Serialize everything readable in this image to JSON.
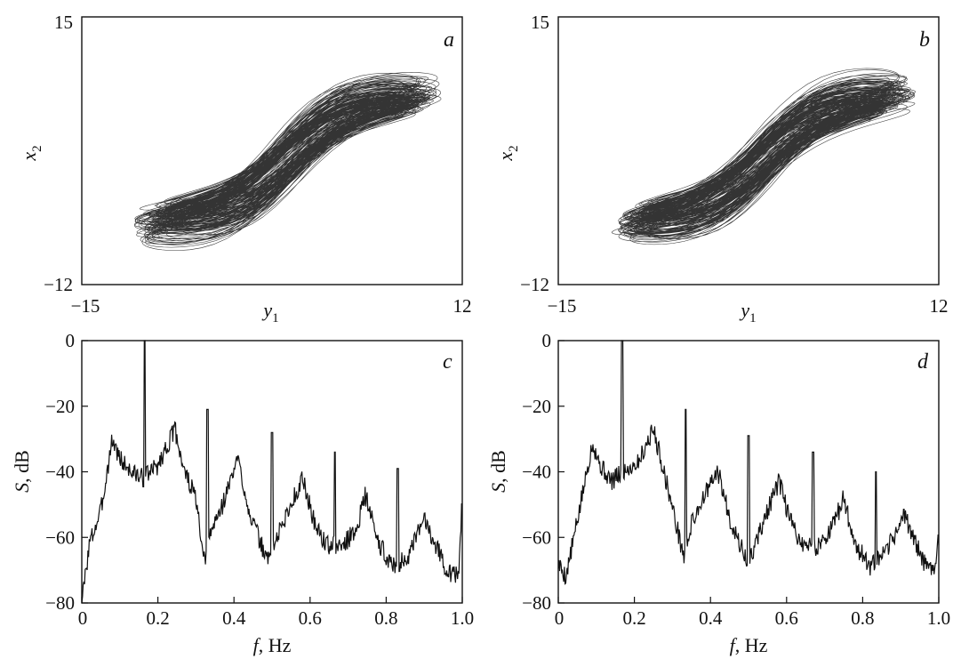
{
  "chart_data": [
    {
      "id": "a",
      "type": "line",
      "panel_label": "a",
      "xlabel": "y1",
      "ylabel": "x2",
      "xlim": [
        -15,
        12
      ],
      "ylim": [
        -12,
        15
      ],
      "x_ticks": [
        "−15",
        "12"
      ],
      "y_ticks": [
        "15",
        "−12"
      ],
      "grid": false,
      "shape": {
        "description_free": true,
        "center": [
          0.5,
          1.0
        ],
        "x_extent": [
          -11,
          10
        ],
        "y_extent": [
          -11,
          12.3
        ],
        "loops": 130,
        "seed": 7
      }
    },
    {
      "id": "b",
      "type": "line",
      "panel_label": "b",
      "xlabel": "y1",
      "ylabel": "x2",
      "xlim": [
        -15,
        12
      ],
      "ylim": [
        -12,
        15
      ],
      "x_ticks": [
        "−15",
        "12"
      ],
      "y_ticks": [
        "15",
        "−12"
      ],
      "grid": false,
      "shape": {
        "center": [
          0.5,
          1.0
        ],
        "x_extent": [
          -11,
          10
        ],
        "y_extent": [
          -11,
          12.3
        ],
        "loops": 130,
        "seed": 11
      }
    },
    {
      "id": "c",
      "type": "line",
      "panel_label": "c",
      "xlabel": "f, Hz",
      "ylabel": "S, dB",
      "xlim": [
        0,
        1.0
      ],
      "ylim": [
        -80,
        0
      ],
      "x_ticks": [
        "0",
        "0.2",
        "0.4",
        "0.6",
        "0.8",
        "1.0"
      ],
      "y_ticks": [
        "0",
        "−20",
        "−40",
        "−60",
        "−80"
      ],
      "grid": false,
      "envelope": [
        [
          0,
          -80
        ],
        [
          0.02,
          -62
        ],
        [
          0.05,
          -52
        ],
        [
          0.08,
          -30
        ],
        [
          0.1,
          -36
        ],
        [
          0.13,
          -40
        ],
        [
          0.16,
          -42
        ],
        [
          0.2,
          -38
        ],
        [
          0.245,
          -27
        ],
        [
          0.27,
          -40
        ],
        [
          0.3,
          -48
        ],
        [
          0.32,
          -68
        ],
        [
          0.34,
          -58
        ],
        [
          0.37,
          -50
        ],
        [
          0.41,
          -36
        ],
        [
          0.44,
          -52
        ],
        [
          0.47,
          -62
        ],
        [
          0.49,
          -67
        ],
        [
          0.52,
          -58
        ],
        [
          0.58,
          -42
        ],
        [
          0.61,
          -55
        ],
        [
          0.64,
          -62
        ],
        [
          0.68,
          -63
        ],
        [
          0.72,
          -58
        ],
        [
          0.745,
          -47
        ],
        [
          0.78,
          -62
        ],
        [
          0.82,
          -69
        ],
        [
          0.86,
          -66
        ],
        [
          0.9,
          -54
        ],
        [
          0.93,
          -62
        ],
        [
          0.96,
          -70
        ],
        [
          0.99,
          -72
        ],
        [
          1.0,
          -48
        ]
      ],
      "peaks": [
        [
          0.165,
          0
        ],
        [
          0.33,
          -21
        ],
        [
          0.5,
          -28
        ],
        [
          0.665,
          -34
        ],
        [
          0.83,
          -39
        ]
      ],
      "seed": 3
    },
    {
      "id": "d",
      "type": "line",
      "panel_label": "d",
      "xlabel": "f, Hz",
      "ylabel": "S, dB",
      "xlim": [
        0,
        1.0
      ],
      "ylim": [
        -80,
        0
      ],
      "x_ticks": [
        "0",
        "0.2",
        "0.4",
        "0.6",
        "0.8",
        "1.0"
      ],
      "y_ticks": [
        "0",
        "−20",
        "−40",
        "−60",
        "−80"
      ],
      "grid": false,
      "envelope": [
        [
          0,
          -68
        ],
        [
          0.02,
          -72
        ],
        [
          0.05,
          -55
        ],
        [
          0.09,
          -31
        ],
        [
          0.11,
          -38
        ],
        [
          0.14,
          -43
        ],
        [
          0.17,
          -40
        ],
        [
          0.21,
          -37
        ],
        [
          0.25,
          -27
        ],
        [
          0.28,
          -41
        ],
        [
          0.31,
          -56
        ],
        [
          0.33,
          -66
        ],
        [
          0.35,
          -56
        ],
        [
          0.38,
          -48
        ],
        [
          0.42,
          -40
        ],
        [
          0.45,
          -54
        ],
        [
          0.48,
          -63
        ],
        [
          0.5,
          -68
        ],
        [
          0.53,
          -58
        ],
        [
          0.58,
          -43
        ],
        [
          0.61,
          -55
        ],
        [
          0.64,
          -62
        ],
        [
          0.68,
          -63
        ],
        [
          0.72,
          -57
        ],
        [
          0.75,
          -48
        ],
        [
          0.78,
          -62
        ],
        [
          0.82,
          -69
        ],
        [
          0.86,
          -65
        ],
        [
          0.91,
          -53
        ],
        [
          0.94,
          -62
        ],
        [
          0.97,
          -70
        ],
        [
          0.99,
          -68
        ],
        [
          1.0,
          -60
        ]
      ],
      "peaks": [
        [
          0.168,
          0
        ],
        [
          0.335,
          -21
        ],
        [
          0.5,
          -29
        ],
        [
          0.67,
          -34
        ],
        [
          0.835,
          -40
        ]
      ],
      "seed": 5
    }
  ]
}
